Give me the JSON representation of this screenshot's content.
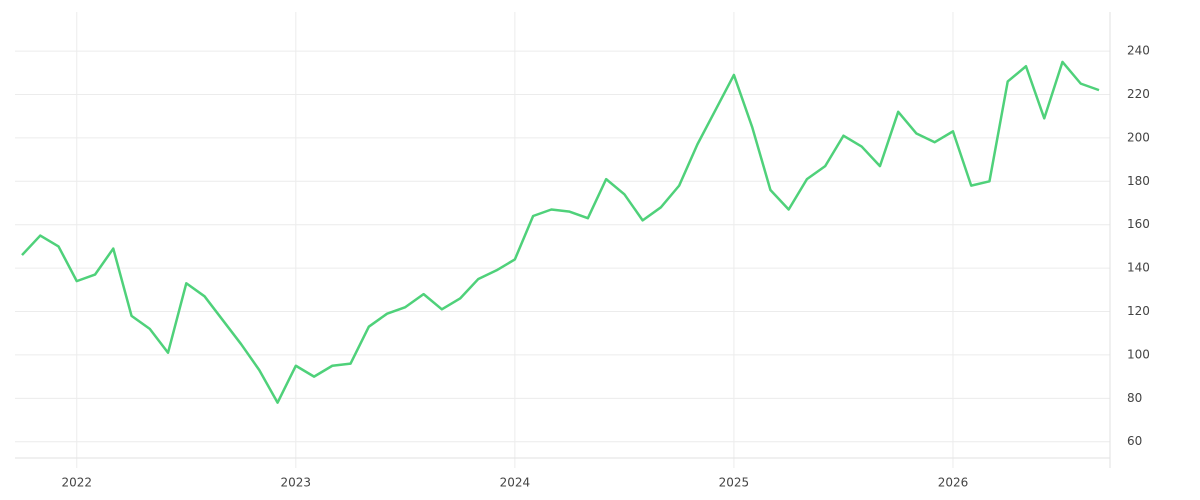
{
  "chart_data": {
    "type": "line",
    "x": [
      "2021-10",
      "2021-11",
      "2021-12",
      "2022-01",
      "2022-02",
      "2022-03",
      "2022-04",
      "2022-05",
      "2022-06",
      "2022-07",
      "2022-08",
      "2022-09",
      "2022-10",
      "2022-11",
      "2022-12",
      "2023-01",
      "2023-02",
      "2023-03",
      "2023-04",
      "2023-05",
      "2023-06",
      "2023-07",
      "2023-08",
      "2023-09",
      "2023-10",
      "2023-11",
      "2023-12",
      "2024-01",
      "2024-02",
      "2024-03",
      "2024-04",
      "2024-05",
      "2024-06",
      "2024-07",
      "2024-08",
      "2024-09",
      "2024-10",
      "2024-11",
      "2024-12",
      "2025-01",
      "2025-02",
      "2025-03",
      "2025-04",
      "2025-05",
      "2025-06",
      "2025-07",
      "2025-08",
      "2025-09",
      "2025-10",
      "2025-11",
      "2025-12",
      "2026-01",
      "2026-02",
      "2026-03",
      "2026-04",
      "2026-05",
      "2026-06",
      "2026-07",
      "2026-08",
      "2026-09"
    ],
    "series": [
      {
        "color": "#4fd17a",
        "values": [
          146,
          155,
          150,
          134,
          137,
          149,
          118,
          112,
          101,
          133,
          127,
          116,
          105,
          93,
          78,
          95,
          90,
          95,
          96,
          113,
          119,
          122,
          128,
          121,
          126,
          135,
          139,
          144,
          164,
          167,
          166,
          163,
          181,
          174,
          162,
          168,
          178,
          197,
          213,
          229,
          205,
          176,
          167,
          181,
          187,
          201,
          196,
          187,
          212,
          202,
          198,
          203,
          178,
          180,
          226,
          233,
          209,
          235,
          225,
          222
        ]
      }
    ],
    "xlim": [
      "2021-10",
      "2026-09"
    ],
    "xticks": [
      {
        "value": "2022-01",
        "label": "2022"
      },
      {
        "value": "2023-01",
        "label": "2023"
      },
      {
        "value": "2024-01",
        "label": "2024"
      },
      {
        "value": "2025-01",
        "label": "2025"
      },
      {
        "value": "2026-01",
        "label": "2026"
      }
    ],
    "ylim": [
      52.5,
      258
    ],
    "yticks": [
      60,
      80,
      100,
      120,
      140,
      160,
      180,
      200,
      220,
      240
    ],
    "grid": true
  }
}
